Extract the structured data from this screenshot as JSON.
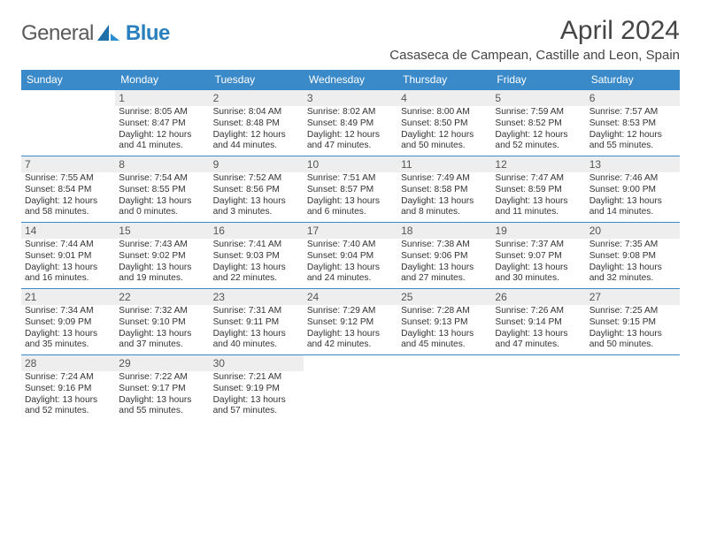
{
  "brand": {
    "word1": "General",
    "word2": "Blue"
  },
  "title": "April 2024",
  "location": "Casaseca de Campean, Castille and Leon, Spain",
  "colors": {
    "header_bg": "#3a8ac9",
    "header_text": "#ffffff",
    "rule": "#3a8ac9",
    "shade_bg": "#eeeeee",
    "body_text": "#333333",
    "logo_gray": "#5a5a5a",
    "logo_blue": "#2a7fbf"
  },
  "day_names": [
    "Sunday",
    "Monday",
    "Tuesday",
    "Wednesday",
    "Thursday",
    "Friday",
    "Saturday"
  ],
  "weeks": [
    [
      {
        "num": "",
        "sunrise": "",
        "sunset": "",
        "daylight1": "",
        "daylight2": ""
      },
      {
        "num": "1",
        "sunrise": "Sunrise: 8:05 AM",
        "sunset": "Sunset: 8:47 PM",
        "daylight1": "Daylight: 12 hours",
        "daylight2": "and 41 minutes."
      },
      {
        "num": "2",
        "sunrise": "Sunrise: 8:04 AM",
        "sunset": "Sunset: 8:48 PM",
        "daylight1": "Daylight: 12 hours",
        "daylight2": "and 44 minutes."
      },
      {
        "num": "3",
        "sunrise": "Sunrise: 8:02 AM",
        "sunset": "Sunset: 8:49 PM",
        "daylight1": "Daylight: 12 hours",
        "daylight2": "and 47 minutes."
      },
      {
        "num": "4",
        "sunrise": "Sunrise: 8:00 AM",
        "sunset": "Sunset: 8:50 PM",
        "daylight1": "Daylight: 12 hours",
        "daylight2": "and 50 minutes."
      },
      {
        "num": "5",
        "sunrise": "Sunrise: 7:59 AM",
        "sunset": "Sunset: 8:52 PM",
        "daylight1": "Daylight: 12 hours",
        "daylight2": "and 52 minutes."
      },
      {
        "num": "6",
        "sunrise": "Sunrise: 7:57 AM",
        "sunset": "Sunset: 8:53 PM",
        "daylight1": "Daylight: 12 hours",
        "daylight2": "and 55 minutes."
      }
    ],
    [
      {
        "num": "7",
        "sunrise": "Sunrise: 7:55 AM",
        "sunset": "Sunset: 8:54 PM",
        "daylight1": "Daylight: 12 hours",
        "daylight2": "and 58 minutes."
      },
      {
        "num": "8",
        "sunrise": "Sunrise: 7:54 AM",
        "sunset": "Sunset: 8:55 PM",
        "daylight1": "Daylight: 13 hours",
        "daylight2": "and 0 minutes."
      },
      {
        "num": "9",
        "sunrise": "Sunrise: 7:52 AM",
        "sunset": "Sunset: 8:56 PM",
        "daylight1": "Daylight: 13 hours",
        "daylight2": "and 3 minutes."
      },
      {
        "num": "10",
        "sunrise": "Sunrise: 7:51 AM",
        "sunset": "Sunset: 8:57 PM",
        "daylight1": "Daylight: 13 hours",
        "daylight2": "and 6 minutes."
      },
      {
        "num": "11",
        "sunrise": "Sunrise: 7:49 AM",
        "sunset": "Sunset: 8:58 PM",
        "daylight1": "Daylight: 13 hours",
        "daylight2": "and 8 minutes."
      },
      {
        "num": "12",
        "sunrise": "Sunrise: 7:47 AM",
        "sunset": "Sunset: 8:59 PM",
        "daylight1": "Daylight: 13 hours",
        "daylight2": "and 11 minutes."
      },
      {
        "num": "13",
        "sunrise": "Sunrise: 7:46 AM",
        "sunset": "Sunset: 9:00 PM",
        "daylight1": "Daylight: 13 hours",
        "daylight2": "and 14 minutes."
      }
    ],
    [
      {
        "num": "14",
        "sunrise": "Sunrise: 7:44 AM",
        "sunset": "Sunset: 9:01 PM",
        "daylight1": "Daylight: 13 hours",
        "daylight2": "and 16 minutes."
      },
      {
        "num": "15",
        "sunrise": "Sunrise: 7:43 AM",
        "sunset": "Sunset: 9:02 PM",
        "daylight1": "Daylight: 13 hours",
        "daylight2": "and 19 minutes."
      },
      {
        "num": "16",
        "sunrise": "Sunrise: 7:41 AM",
        "sunset": "Sunset: 9:03 PM",
        "daylight1": "Daylight: 13 hours",
        "daylight2": "and 22 minutes."
      },
      {
        "num": "17",
        "sunrise": "Sunrise: 7:40 AM",
        "sunset": "Sunset: 9:04 PM",
        "daylight1": "Daylight: 13 hours",
        "daylight2": "and 24 minutes."
      },
      {
        "num": "18",
        "sunrise": "Sunrise: 7:38 AM",
        "sunset": "Sunset: 9:06 PM",
        "daylight1": "Daylight: 13 hours",
        "daylight2": "and 27 minutes."
      },
      {
        "num": "19",
        "sunrise": "Sunrise: 7:37 AM",
        "sunset": "Sunset: 9:07 PM",
        "daylight1": "Daylight: 13 hours",
        "daylight2": "and 30 minutes."
      },
      {
        "num": "20",
        "sunrise": "Sunrise: 7:35 AM",
        "sunset": "Sunset: 9:08 PM",
        "daylight1": "Daylight: 13 hours",
        "daylight2": "and 32 minutes."
      }
    ],
    [
      {
        "num": "21",
        "sunrise": "Sunrise: 7:34 AM",
        "sunset": "Sunset: 9:09 PM",
        "daylight1": "Daylight: 13 hours",
        "daylight2": "and 35 minutes."
      },
      {
        "num": "22",
        "sunrise": "Sunrise: 7:32 AM",
        "sunset": "Sunset: 9:10 PM",
        "daylight1": "Daylight: 13 hours",
        "daylight2": "and 37 minutes."
      },
      {
        "num": "23",
        "sunrise": "Sunrise: 7:31 AM",
        "sunset": "Sunset: 9:11 PM",
        "daylight1": "Daylight: 13 hours",
        "daylight2": "and 40 minutes."
      },
      {
        "num": "24",
        "sunrise": "Sunrise: 7:29 AM",
        "sunset": "Sunset: 9:12 PM",
        "daylight1": "Daylight: 13 hours",
        "daylight2": "and 42 minutes."
      },
      {
        "num": "25",
        "sunrise": "Sunrise: 7:28 AM",
        "sunset": "Sunset: 9:13 PM",
        "daylight1": "Daylight: 13 hours",
        "daylight2": "and 45 minutes."
      },
      {
        "num": "26",
        "sunrise": "Sunrise: 7:26 AM",
        "sunset": "Sunset: 9:14 PM",
        "daylight1": "Daylight: 13 hours",
        "daylight2": "and 47 minutes."
      },
      {
        "num": "27",
        "sunrise": "Sunrise: 7:25 AM",
        "sunset": "Sunset: 9:15 PM",
        "daylight1": "Daylight: 13 hours",
        "daylight2": "and 50 minutes."
      }
    ],
    [
      {
        "num": "28",
        "sunrise": "Sunrise: 7:24 AM",
        "sunset": "Sunset: 9:16 PM",
        "daylight1": "Daylight: 13 hours",
        "daylight2": "and 52 minutes."
      },
      {
        "num": "29",
        "sunrise": "Sunrise: 7:22 AM",
        "sunset": "Sunset: 9:17 PM",
        "daylight1": "Daylight: 13 hours",
        "daylight2": "and 55 minutes."
      },
      {
        "num": "30",
        "sunrise": "Sunrise: 7:21 AM",
        "sunset": "Sunset: 9:19 PM",
        "daylight1": "Daylight: 13 hours",
        "daylight2": "and 57 minutes."
      },
      {
        "num": "",
        "sunrise": "",
        "sunset": "",
        "daylight1": "",
        "daylight2": ""
      },
      {
        "num": "",
        "sunrise": "",
        "sunset": "",
        "daylight1": "",
        "daylight2": ""
      },
      {
        "num": "",
        "sunrise": "",
        "sunset": "",
        "daylight1": "",
        "daylight2": ""
      },
      {
        "num": "",
        "sunrise": "",
        "sunset": "",
        "daylight1": "",
        "daylight2": ""
      }
    ]
  ]
}
